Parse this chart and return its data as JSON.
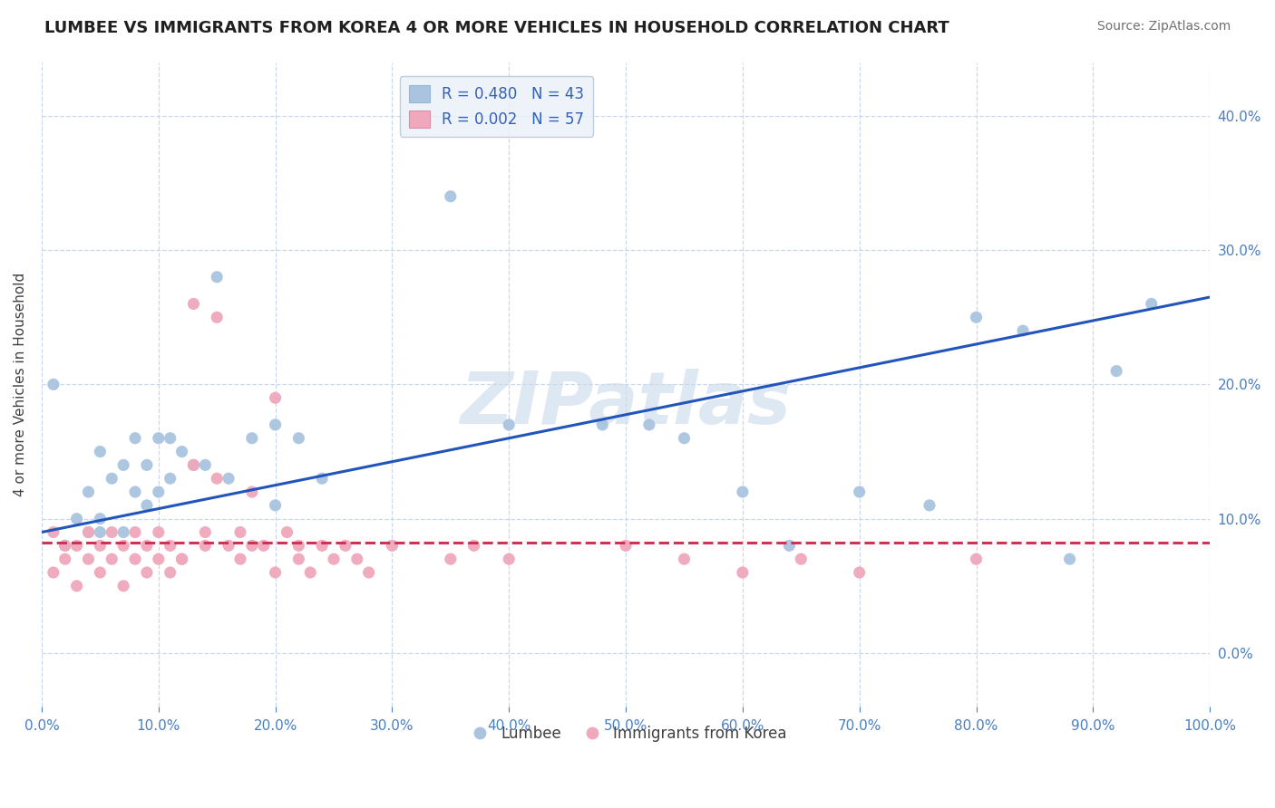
{
  "title": "LUMBEE VS IMMIGRANTS FROM KOREA 4 OR MORE VEHICLES IN HOUSEHOLD CORRELATION CHART",
  "source": "Source: ZipAtlas.com",
  "ylabel": "4 or more Vehicles in Household",
  "xlim": [
    0.0,
    1.0
  ],
  "ylim": [
    -0.04,
    0.44
  ],
  "xticks": [
    0.0,
    0.1,
    0.2,
    0.3,
    0.4,
    0.5,
    0.6,
    0.7,
    0.8,
    0.9,
    1.0
  ],
  "xticklabels": [
    "0.0%",
    "10.0%",
    "20.0%",
    "30.0%",
    "40.0%",
    "50.0%",
    "60.0%",
    "70.0%",
    "80.0%",
    "90.0%",
    "100.0%"
  ],
  "yticks": [
    0.0,
    0.1,
    0.2,
    0.3,
    0.4
  ],
  "yticklabels": [
    "0.0%",
    "10.0%",
    "20.0%",
    "30.0%",
    "40.0%"
  ],
  "lumbee_color": "#aac4e0",
  "korea_color": "#f0a8bc",
  "lumbee_line_color": "#2255bb",
  "korea_line_color": "#cc3355",
  "lumbee_R": 0.48,
  "lumbee_N": 43,
  "korea_R": 0.002,
  "korea_N": 57,
  "watermark": "ZIPatlas",
  "background_color": "#ffffff",
  "grid_color": "#c8d8ea",
  "lumbee_scatter_x": [
    0.01,
    0.02,
    0.03,
    0.04,
    0.04,
    0.05,
    0.05,
    0.06,
    0.07,
    0.07,
    0.08,
    0.08,
    0.09,
    0.09,
    0.1,
    0.1,
    0.11,
    0.11,
    0.12,
    0.13,
    0.14,
    0.15,
    0.16,
    0.18,
    0.2,
    0.24,
    0.35,
    0.4,
    0.48,
    0.52,
    0.55,
    0.6,
    0.64,
    0.7,
    0.76,
    0.8,
    0.84,
    0.88,
    0.92,
    0.95,
    0.2,
    0.22,
    0.05
  ],
  "lumbee_scatter_y": [
    0.2,
    0.08,
    0.1,
    0.09,
    0.12,
    0.15,
    0.09,
    0.13,
    0.14,
    0.09,
    0.12,
    0.16,
    0.11,
    0.14,
    0.12,
    0.16,
    0.16,
    0.13,
    0.15,
    0.14,
    0.14,
    0.28,
    0.13,
    0.16,
    0.11,
    0.13,
    0.34,
    0.17,
    0.17,
    0.17,
    0.16,
    0.12,
    0.08,
    0.12,
    0.11,
    0.25,
    0.24,
    0.07,
    0.21,
    0.26,
    0.17,
    0.16,
    0.1
  ],
  "korea_scatter_x": [
    0.01,
    0.01,
    0.02,
    0.02,
    0.03,
    0.03,
    0.04,
    0.04,
    0.05,
    0.05,
    0.06,
    0.06,
    0.07,
    0.07,
    0.08,
    0.08,
    0.09,
    0.09,
    0.1,
    0.1,
    0.11,
    0.11,
    0.12,
    0.13,
    0.13,
    0.14,
    0.14,
    0.15,
    0.15,
    0.16,
    0.17,
    0.17,
    0.18,
    0.18,
    0.19,
    0.2,
    0.2,
    0.21,
    0.22,
    0.23,
    0.24,
    0.25,
    0.26,
    0.27,
    0.28,
    0.3,
    0.35,
    0.37,
    0.4,
    0.5,
    0.55,
    0.6,
    0.65,
    0.7,
    0.8,
    0.22,
    0.12
  ],
  "korea_scatter_y": [
    0.06,
    0.09,
    0.07,
    0.08,
    0.05,
    0.08,
    0.07,
    0.09,
    0.06,
    0.08,
    0.07,
    0.09,
    0.05,
    0.08,
    0.07,
    0.09,
    0.06,
    0.08,
    0.07,
    0.09,
    0.06,
    0.08,
    0.07,
    0.26,
    0.14,
    0.09,
    0.08,
    0.25,
    0.13,
    0.08,
    0.07,
    0.09,
    0.08,
    0.12,
    0.08,
    0.06,
    0.19,
    0.09,
    0.07,
    0.06,
    0.08,
    0.07,
    0.08,
    0.07,
    0.06,
    0.08,
    0.07,
    0.08,
    0.07,
    0.08,
    0.07,
    0.06,
    0.07,
    0.06,
    0.07,
    0.08,
    0.07
  ],
  "lumbee_line_x0": 0.0,
  "lumbee_line_y0": 0.09,
  "lumbee_line_x1": 1.0,
  "lumbee_line_y1": 0.265,
  "korea_line_x0": 0.0,
  "korea_line_y0": 0.082,
  "korea_line_x1": 1.0,
  "korea_line_y1": 0.082,
  "legend_box_color": "#eaf0f8",
  "legend_border_color": "#b0c4d8"
}
